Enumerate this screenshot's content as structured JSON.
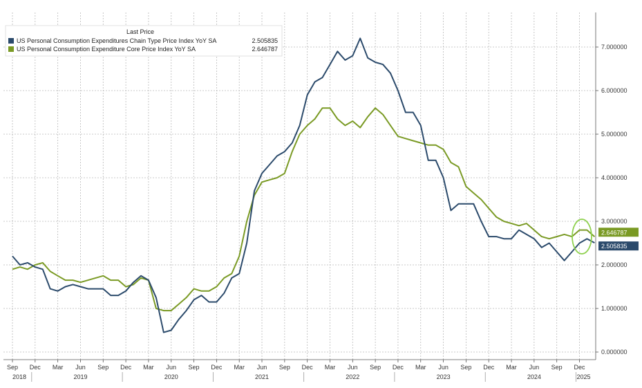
{
  "chart_data": {
    "type": "line",
    "legend": {
      "header": "Last Price",
      "entries": [
        {
          "name": "US Personal Consumption Expenditures Chain Type Price Index YoY SA",
          "last_value": "2.505835",
          "color": "#2b4a6b"
        },
        {
          "name": "US Personal Consumption Expenditure Core Price Index YoY SA",
          "last_value": "2.646787",
          "color": "#7a9a24"
        }
      ],
      "position": "top-left"
    },
    "ylim": [
      0,
      7.5
    ],
    "y_ticks": [
      "0.000000",
      "1.000000",
      "2.000000",
      "3.000000",
      "4.000000",
      "5.000000",
      "6.000000",
      "7.000000"
    ],
    "x_month_labels": [
      "Sep",
      "Dec",
      "Mar",
      "Jun",
      "Sep",
      "Dec",
      "Mar",
      "Jun",
      "Sep",
      "Dec",
      "Mar",
      "Jun",
      "Sep",
      "Dec",
      "Mar",
      "Jun",
      "Sep",
      "Dec",
      "Mar",
      "Jun",
      "Sep",
      "Dec",
      "Mar",
      "Jun",
      "Sep",
      "Dec"
    ],
    "x_year_labels": [
      "2018",
      "2019",
      "2020",
      "2021",
      "2022",
      "2023",
      "2024",
      "2025"
    ],
    "start": "2018-09",
    "series": [
      {
        "name": "US Personal Consumption Expenditures Chain Type Price Index YoY SA",
        "color": "#2b4a6b",
        "values": [
          2.2,
          2.0,
          2.05,
          1.95,
          1.9,
          1.45,
          1.4,
          1.5,
          1.55,
          1.5,
          1.45,
          1.45,
          1.45,
          1.3,
          1.3,
          1.4,
          1.6,
          1.75,
          1.65,
          1.25,
          0.45,
          0.5,
          0.75,
          0.95,
          1.2,
          1.3,
          1.15,
          1.15,
          1.35,
          1.7,
          1.8,
          2.5,
          3.7,
          4.1,
          4.3,
          4.5,
          4.6,
          4.8,
          5.2,
          5.9,
          6.2,
          6.3,
          6.6,
          6.9,
          6.7,
          6.8,
          7.2,
          6.75,
          6.65,
          6.6,
          6.4,
          6.0,
          5.5,
          5.5,
          5.2,
          4.4,
          4.4,
          4.0,
          3.25,
          3.4,
          3.4,
          3.4,
          3.0,
          2.65,
          2.65,
          2.6,
          2.6,
          2.8,
          2.7,
          2.6,
          2.4,
          2.5,
          2.3,
          2.1,
          2.3,
          2.5,
          2.6,
          2.505835
        ]
      },
      {
        "name": "US Personal Consumption Expenditure Core Price Index YoY SA",
        "color": "#7a9a24",
        "values": [
          1.9,
          1.95,
          1.9,
          2.0,
          2.05,
          1.85,
          1.75,
          1.65,
          1.65,
          1.6,
          1.65,
          1.7,
          1.75,
          1.65,
          1.65,
          1.5,
          1.55,
          1.7,
          1.65,
          1.0,
          0.95,
          0.95,
          1.1,
          1.25,
          1.45,
          1.4,
          1.4,
          1.5,
          1.7,
          1.8,
          2.2,
          3.0,
          3.6,
          3.9,
          3.95,
          4.0,
          4.1,
          4.6,
          5.0,
          5.2,
          5.35,
          5.6,
          5.6,
          5.35,
          5.2,
          5.3,
          5.15,
          5.4,
          5.6,
          5.45,
          5.2,
          4.95,
          4.9,
          4.85,
          4.8,
          4.75,
          4.75,
          4.65,
          4.35,
          4.25,
          3.8,
          3.65,
          3.5,
          3.3,
          3.1,
          3.0,
          2.95,
          2.9,
          2.95,
          2.8,
          2.65,
          2.6,
          2.65,
          2.7,
          2.65,
          2.8,
          2.8,
          2.646787
        ]
      }
    ],
    "last_value_labels": [
      {
        "text": "2.646787",
        "color": "#7a9a24"
      },
      {
        "text": "2.505835",
        "color": "#2b4a6b"
      }
    ]
  }
}
